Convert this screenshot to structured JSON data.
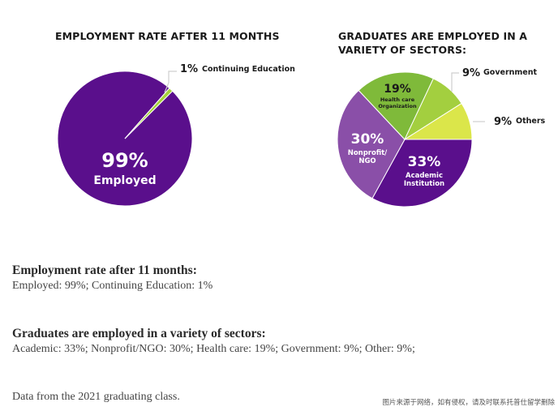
{
  "chart_data": [
    {
      "type": "pie",
      "title": "EMPLOYMENT RATE AFTER 11 MONTHS",
      "slices": [
        {
          "value_label": "99%",
          "name": "Employed",
          "value": 99,
          "color": "#5a0f8c"
        },
        {
          "value_label": "1%",
          "name": "Continuing Education",
          "value": 1,
          "color": "#a6d13b"
        }
      ]
    },
    {
      "type": "pie",
      "title": "GRADUATES ARE EMPLOYED IN A\nVARIETY OF SECTORS:",
      "slices": [
        {
          "value_label": "33%",
          "name": "Academic\nInstitution",
          "value": 33,
          "color": "#5a0f8c"
        },
        {
          "value_label": "30%",
          "name": "Nonprofit/\nNGO",
          "value": 30,
          "color": "#8a4fa8"
        },
        {
          "value_label": "19%",
          "name": "Health care\nOrganization",
          "value": 19,
          "color": "#7fba3a"
        },
        {
          "value_label": "9%",
          "name": "Government",
          "value": 9,
          "color": "#a3cf3f"
        },
        {
          "value_label": "9%",
          "name": "Others",
          "value": 9,
          "color": "#dbe64a"
        }
      ]
    }
  ],
  "summary": [
    {
      "heading": "Employment rate after 11 months:",
      "text": "Employed: 99%; Continuing Education: 1%"
    },
    {
      "heading": "Graduates are employed in a variety of sectors:",
      "text": "Academic: 33%; Nonprofit/NGO: 30%; Health care: 19%; Government: 9%; Other: 9%;"
    }
  ],
  "source_note": "Data from the 2021 graduating class.",
  "watermark": "图片来源于网络，如有侵权，请及时联系托普仕留学删除"
}
